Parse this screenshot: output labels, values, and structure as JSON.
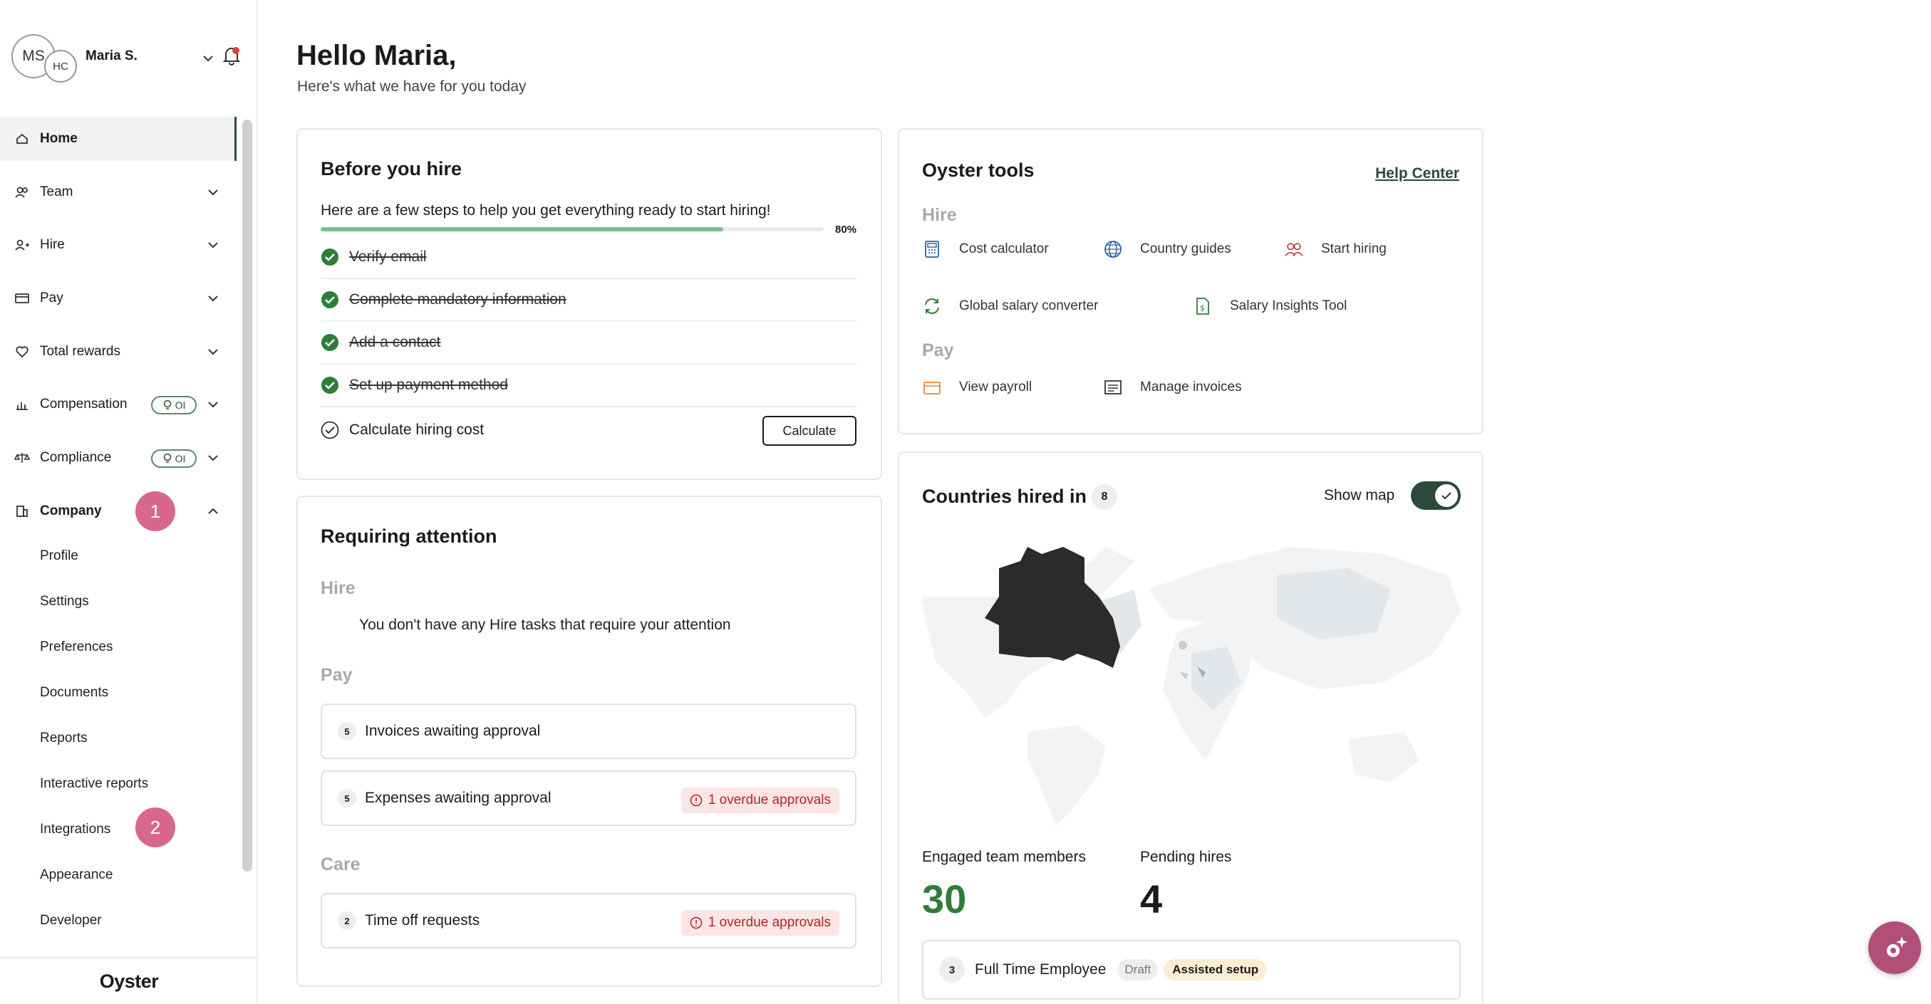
{
  "user": {
    "initials_primary": "MS",
    "initials_secondary": "HC",
    "name": "Maria S."
  },
  "sidebar": {
    "items": [
      {
        "label": "Home",
        "icon": "home-icon"
      },
      {
        "label": "Team",
        "icon": "team-icon"
      },
      {
        "label": "Hire",
        "icon": "hire-icon"
      },
      {
        "label": "Pay",
        "icon": "pay-icon"
      },
      {
        "label": "Total rewards",
        "icon": "heart-icon"
      },
      {
        "label": "Compensation",
        "icon": "chart-icon",
        "badge": "OI"
      },
      {
        "label": "Compliance",
        "icon": "scale-icon",
        "badge": "OI"
      },
      {
        "label": "Company",
        "icon": "building-icon"
      }
    ],
    "company_subitems": [
      "Profile",
      "Settings",
      "Preferences",
      "Documents",
      "Reports",
      "Interactive reports",
      "Integrations",
      "Appearance",
      "Developer"
    ],
    "annotation_1": "1",
    "annotation_2": "2",
    "footer": "Oyster"
  },
  "greeting": {
    "title": "Hello Maria,",
    "subtitle": "Here's what we have for you today"
  },
  "before_hire": {
    "title": "Before you hire",
    "intro": "Here are a few steps to help you get everything ready to start hiring!",
    "progress": 0.8,
    "progress_label": "80%",
    "steps": [
      {
        "label": "Verify email",
        "done": true
      },
      {
        "label": "Complete mandatory information",
        "done": true
      },
      {
        "label": "Add a contact",
        "done": true
      },
      {
        "label": "Set up payment method",
        "done": true
      },
      {
        "label": "Calculate hiring cost",
        "done": false
      }
    ],
    "calculate_label": "Calculate"
  },
  "attention": {
    "title": "Requiring attention",
    "hire_label": "Hire",
    "hire_empty": "You don't have any Hire tasks that require your attention",
    "pay_label": "Pay",
    "care_label": "Care",
    "rows": [
      {
        "count": "5",
        "label": "Invoices awaiting approval",
        "overdue": ""
      },
      {
        "count": "5",
        "label": "Expenses awaiting approval",
        "overdue": "1 overdue approvals"
      },
      {
        "count": "2",
        "label": "Time off requests",
        "overdue": "1 overdue approvals"
      }
    ]
  },
  "tools": {
    "title": "Oyster tools",
    "help_center": "Help Center",
    "hire_label": "Hire",
    "pay_label": "Pay",
    "hire_tools": [
      "Cost calculator",
      "Country guides",
      "Start hiring",
      "Global salary converter",
      "Salary Insights Tool"
    ],
    "pay_tools": [
      "View payroll",
      "Manage invoices"
    ]
  },
  "countries": {
    "title": "Countries hired in",
    "count": "8",
    "show_map_label": "Show map",
    "show_map": true,
    "engaged_label": "Engaged team members",
    "engaged_value": "30",
    "pending_label": "Pending hires",
    "pending_value": "4",
    "fte": {
      "count": "3",
      "label": "Full Time Employee",
      "draft": "Draft",
      "assisted": "Assisted setup"
    }
  },
  "colors": {
    "accent": "#2b4a3b",
    "progress": "#7fbf8f",
    "badge_pink": "#d8678f",
    "engaged_green": "#2e7d3a",
    "overdue_bg": "#fbe5e5"
  }
}
